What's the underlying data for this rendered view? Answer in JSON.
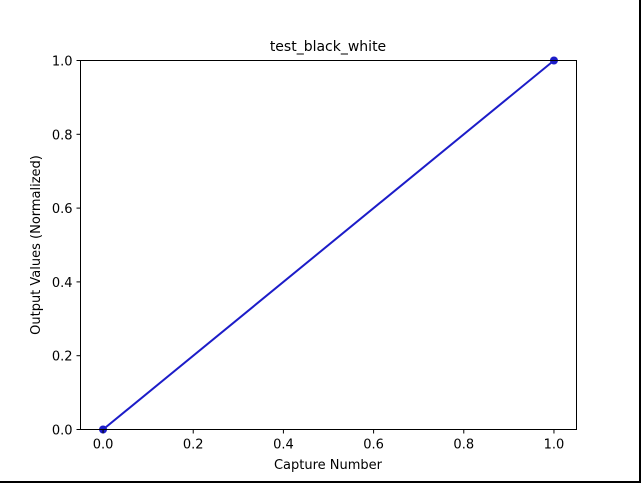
{
  "chart_data": {
    "type": "line",
    "title": "test_black_white",
    "xlabel": "Capture Number",
    "ylabel": "Output Values (Normalized)",
    "xlim": [
      -0.05,
      1.05
    ],
    "ylim": [
      0.0,
      1.0
    ],
    "xticks": [
      "0.0",
      "0.2",
      "0.4",
      "0.6",
      "0.8",
      "1.0"
    ],
    "yticks": [
      "0.0",
      "0.2",
      "0.4",
      "0.6",
      "0.8",
      "1.0"
    ],
    "grid": false,
    "series": [
      {
        "x": [
          0.0,
          1.0
        ],
        "y": [
          0.0,
          1.0
        ],
        "color": "#1c1cc8",
        "marker": "circle"
      }
    ]
  }
}
